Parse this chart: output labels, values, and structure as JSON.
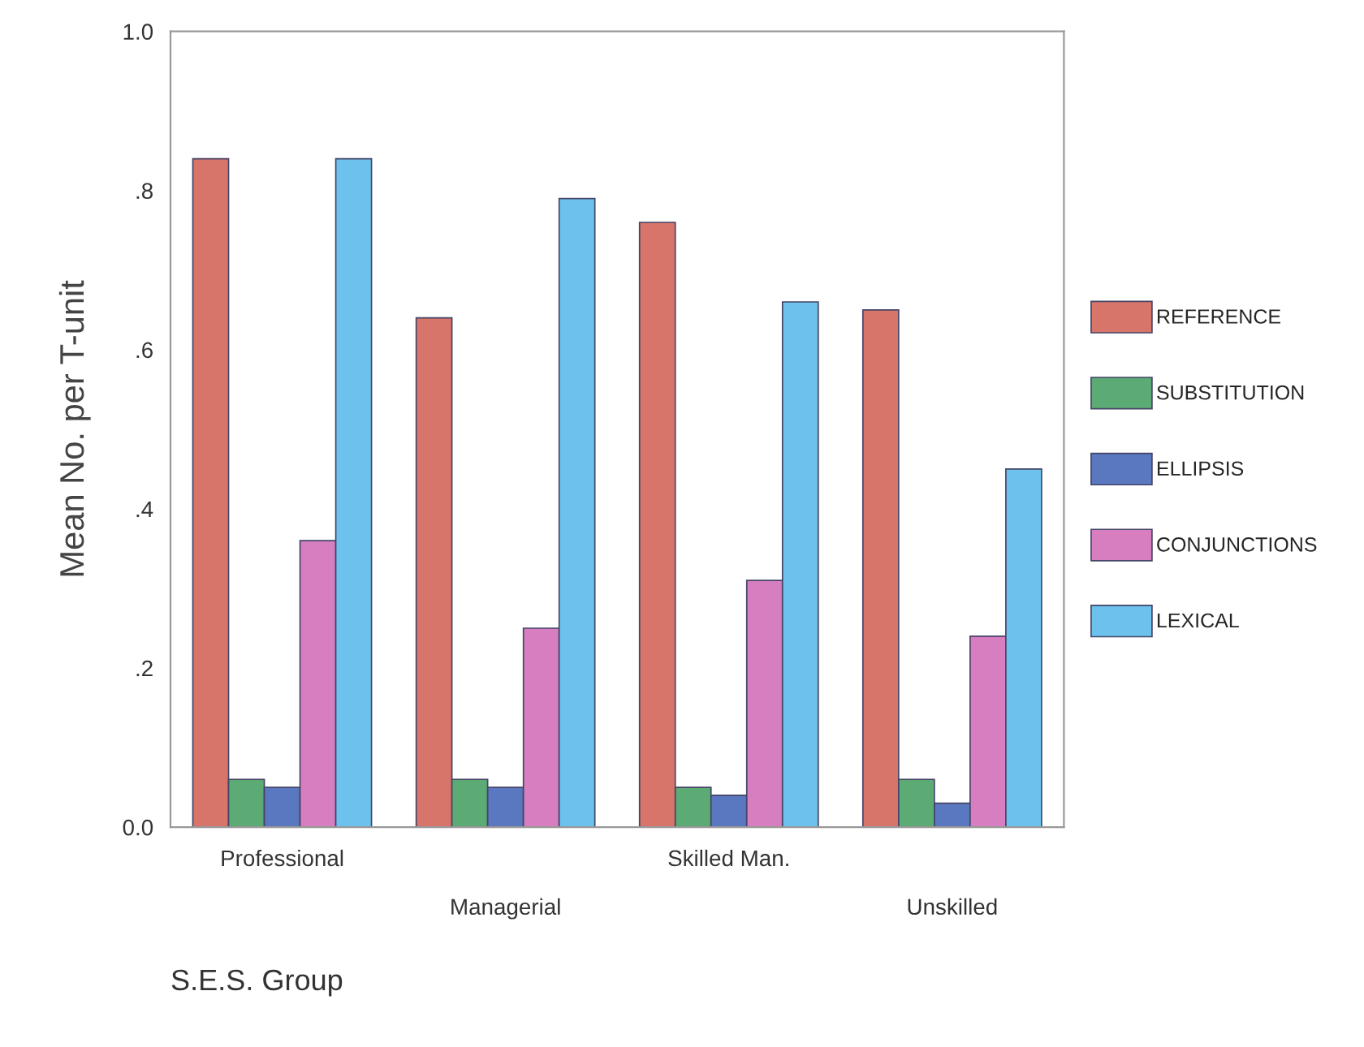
{
  "chart_data": {
    "type": "bar",
    "xlabel": "S.E.S. Group",
    "ylabel": "Mean No. per T-unit",
    "categories": [
      "Professional",
      "Managerial",
      "Skilled Man.",
      "Unskilled"
    ],
    "series": [
      {
        "name": "REFERENCE",
        "color": "#d8756a",
        "values": [
          0.84,
          0.64,
          0.76,
          0.65
        ]
      },
      {
        "name": "SUBSTITUTION",
        "color": "#5cab74",
        "values": [
          0.06,
          0.06,
          0.05,
          0.06
        ]
      },
      {
        "name": "ELLIPSIS",
        "color": "#5a78c0",
        "values": [
          0.05,
          0.05,
          0.04,
          0.03
        ]
      },
      {
        "name": "CONJUNCTIONS",
        "color": "#d77ec0",
        "values": [
          0.36,
          0.25,
          0.31,
          0.24
        ]
      },
      {
        "name": "LEXICAL",
        "color": "#6cc2ec",
        "values": [
          0.84,
          0.79,
          0.66,
          0.45
        ]
      }
    ],
    "ylim": [
      0,
      1.0
    ],
    "yticks": [
      {
        "value": 0,
        "label": "0.0"
      },
      {
        "value": 0.2,
        "label": ".2"
      },
      {
        "value": 0.4,
        "label": ".4"
      },
      {
        "value": 0.6,
        "label": ".6"
      },
      {
        "value": 0.8,
        "label": ".8"
      },
      {
        "value": 1.0,
        "label": "1.0"
      }
    ],
    "grid": false,
    "legend": "right"
  }
}
